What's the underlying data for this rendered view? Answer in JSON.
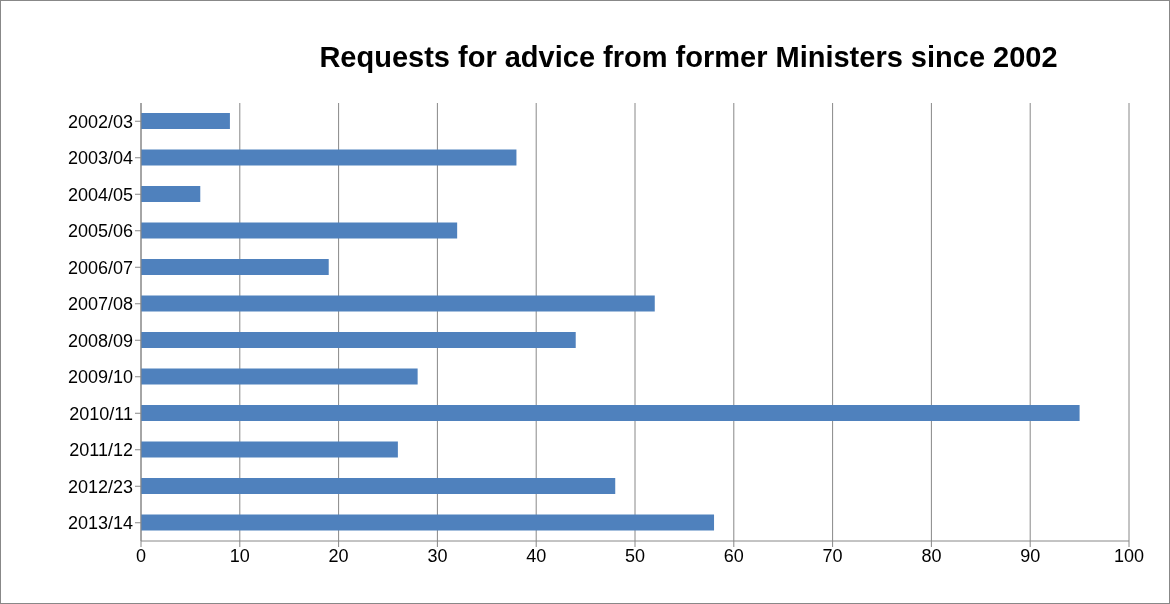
{
  "chart_data": {
    "type": "bar",
    "title": "Requests for advice from former Ministers since 2002",
    "orientation": "horizontal",
    "categories": [
      "2002/03",
      "2003/04",
      "2004/05",
      "2005/06",
      "2006/07",
      "2007/08",
      "2008/09",
      "2009/10",
      "2010/11",
      "2011/12",
      "2012/23",
      "2013/14"
    ],
    "values": [
      9,
      38,
      6,
      32,
      19,
      52,
      44,
      28,
      95,
      26,
      48,
      58
    ],
    "color": "#4f81bd",
    "xlim": [
      0,
      100
    ],
    "xticks": [
      0,
      10,
      20,
      30,
      40,
      50,
      60,
      70,
      80,
      90,
      100
    ],
    "grid": "x",
    "legend": false
  }
}
